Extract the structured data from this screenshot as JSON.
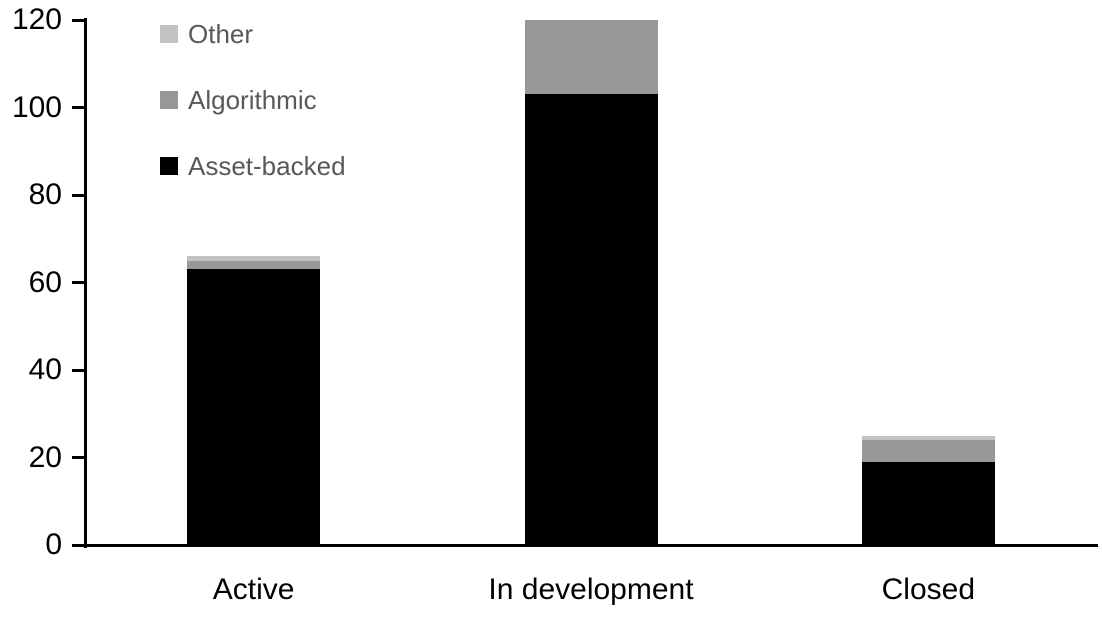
{
  "chart_data": {
    "type": "bar",
    "stacked": true,
    "title": "",
    "categories": [
      "Active",
      "In development",
      "Closed"
    ],
    "series": [
      {
        "name": "Asset-backed",
        "color": "#000000",
        "values": [
          63,
          103,
          19
        ]
      },
      {
        "name": "Algorithmic",
        "color": "#989898",
        "values": [
          2,
          17,
          5
        ]
      },
      {
        "name": "Other",
        "color": "#c3c3c3",
        "values": [
          1,
          0,
          1
        ]
      }
    ],
    "totals": [
      66,
      120,
      25
    ],
    "yaxis": {
      "min": 0,
      "max": 120,
      "tick_interval": 20,
      "ticks": [
        0,
        20,
        40,
        60,
        80,
        100,
        120
      ],
      "label_color": "#000000"
    },
    "xlabel": "",
    "ylabel": "",
    "grid": false,
    "legend": {
      "position": "top-left",
      "entries": [
        "Other",
        "Algorithmic",
        "Asset-backed"
      ],
      "text_color": "#595959"
    },
    "background": "#ffffff",
    "axis_color": "#000000"
  }
}
